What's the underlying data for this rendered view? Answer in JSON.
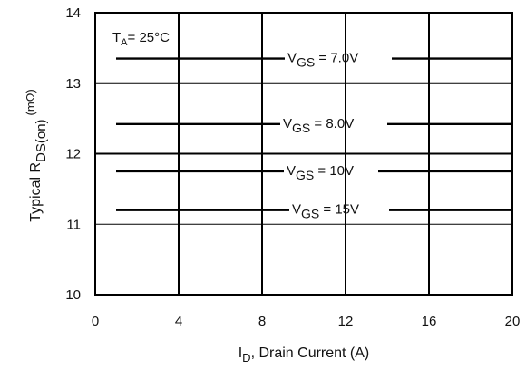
{
  "chart_data": {
    "type": "line",
    "xlabel": {
      "main": "I",
      "sub": "D",
      "rest": ", Drain Current (A)"
    },
    "ylabel": {
      "main": "Typical R",
      "sub": "DS(on)",
      "unit": "(mΩ)"
    },
    "annotation": {
      "main": "T",
      "sub": "A",
      "rest": "= 25°C"
    },
    "xlim": [
      0,
      20
    ],
    "ylim": [
      10,
      14
    ],
    "x_ticks": [
      "0",
      "4",
      "8",
      "12",
      "16",
      "20"
    ],
    "y_ticks": [
      "10",
      "11",
      "12",
      "13",
      "14"
    ],
    "grid": true,
    "series": [
      {
        "name": {
          "main": "V",
          "sub": "GS",
          "rest": " = 7.0V"
        },
        "x": [
          1,
          20
        ],
        "y": [
          13.35,
          13.35
        ]
      },
      {
        "name": {
          "main": "V",
          "sub": "GS",
          "rest": " = 8.0V"
        },
        "x": [
          1,
          20
        ],
        "y": [
          12.42,
          12.42
        ]
      },
      {
        "name": {
          "main": "V",
          "sub": "GS",
          "rest": " = 10V"
        },
        "x": [
          1,
          20
        ],
        "y": [
          11.75,
          11.75
        ]
      },
      {
        "name": {
          "main": "V",
          "sub": "GS",
          "rest": " = 15V"
        },
        "x": [
          1,
          20
        ],
        "y": [
          11.2,
          11.2
        ]
      }
    ]
  }
}
